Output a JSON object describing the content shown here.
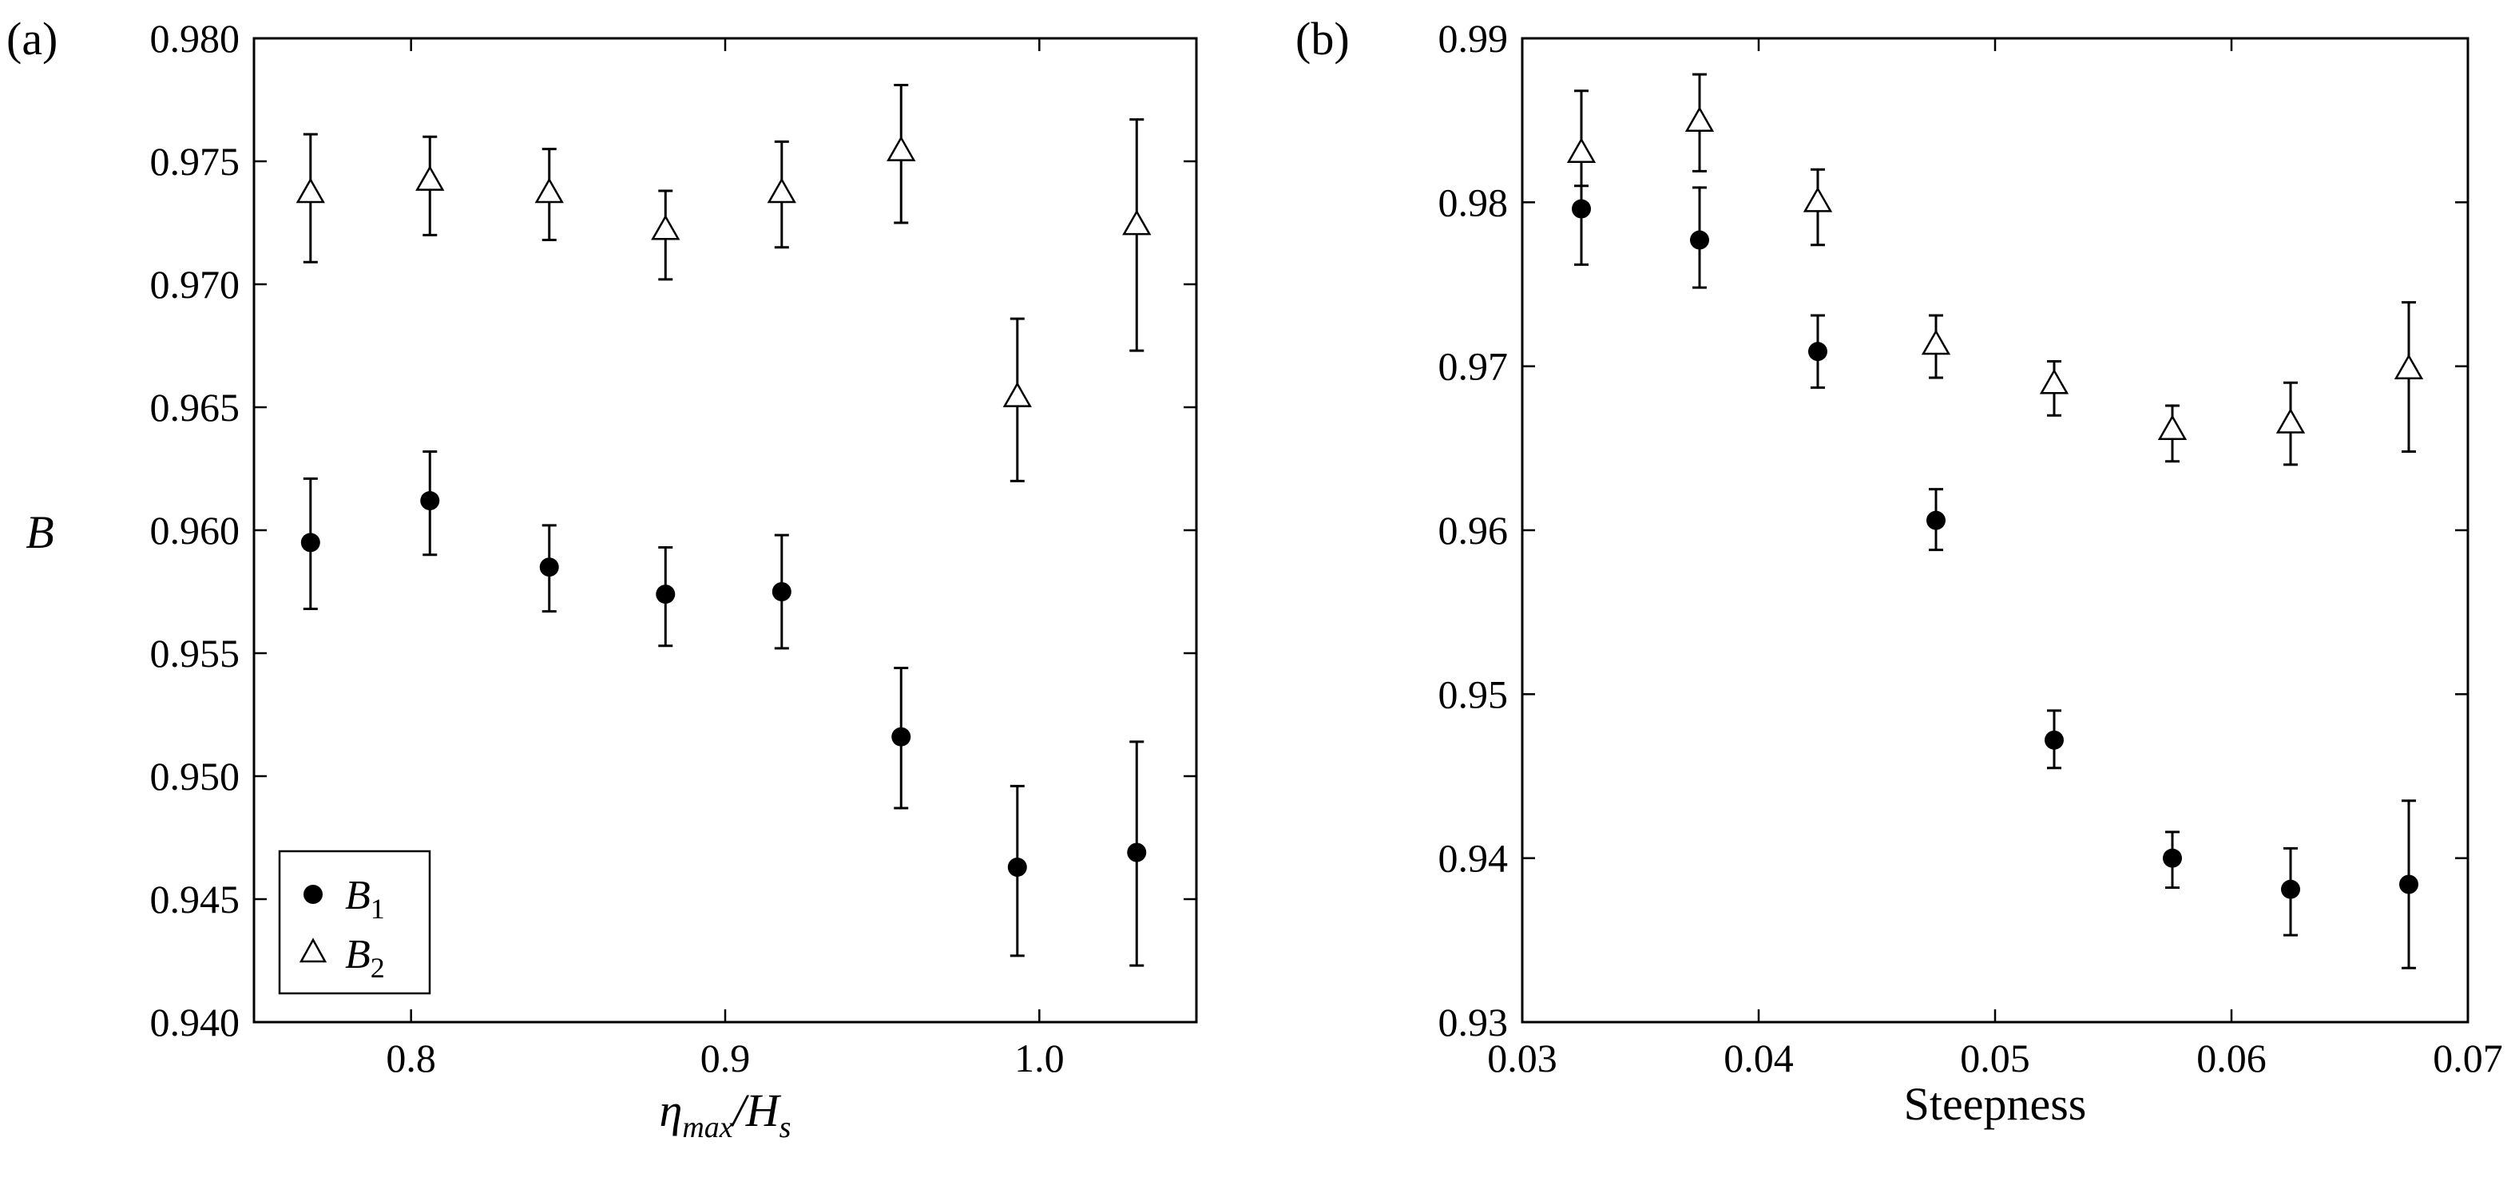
{
  "chart_data": [
    {
      "panel_label": "(a)",
      "type": "scatter",
      "ylabel": "B",
      "xlim": [
        0.75,
        1.05
      ],
      "ylim": [
        0.94,
        0.98
      ],
      "xticks": [
        "0.8",
        "0.9",
        "1.0"
      ],
      "xtick_values": [
        0.8,
        0.9,
        1.0
      ],
      "yticks": [
        "0.940",
        "0.945",
        "0.950",
        "0.955",
        "0.960",
        "0.965",
        "0.970",
        "0.975",
        "0.980"
      ],
      "ytick_values": [
        0.94,
        0.945,
        0.95,
        0.955,
        0.96,
        0.965,
        0.97,
        0.975,
        0.98
      ],
      "legend_placement": "bottom-left",
      "series": [
        {
          "marker": "filled-circle",
          "x": [
            0.768,
            0.806,
            0.844,
            0.881,
            0.918,
            0.956,
            0.993,
            1.031
          ],
          "y": [
            0.9595,
            0.9612,
            0.9585,
            0.9574,
            0.9575,
            0.9516,
            0.9463,
            0.9469
          ],
          "y_low": [
            0.9568,
            0.959,
            0.9567,
            0.9553,
            0.9552,
            0.9487,
            0.9427,
            0.9423
          ],
          "y_high": [
            0.9621,
            0.9632,
            0.9602,
            0.9593,
            0.9598,
            0.9544,
            0.9496,
            0.9514
          ]
        },
        {
          "marker": "open-triangle",
          "x": [
            0.768,
            0.806,
            0.844,
            0.881,
            0.918,
            0.956,
            0.993,
            1.031
          ],
          "y": [
            0.9737,
            0.9742,
            0.9737,
            0.9722,
            0.9737,
            0.9754,
            0.9654,
            0.9724
          ],
          "y_low": [
            0.9709,
            0.972,
            0.9718,
            0.9702,
            0.9715,
            0.9725,
            0.962,
            0.9673
          ],
          "y_high": [
            0.9761,
            0.976,
            0.9755,
            0.9738,
            0.9758,
            0.9781,
            0.9686,
            0.9767
          ]
        }
      ]
    },
    {
      "panel_label": "(b)",
      "type": "scatter",
      "xlabel": "Steepness",
      "xlim": [
        0.03,
        0.07
      ],
      "ylim": [
        0.93,
        0.99
      ],
      "xticks": [
        "0.03",
        "0.04",
        "0.05",
        "0.06",
        "0.07"
      ],
      "xtick_values": [
        0.03,
        0.04,
        0.05,
        0.06,
        0.07
      ],
      "yticks": [
        "0.93",
        "0.94",
        "0.95",
        "0.96",
        "0.97",
        "0.98",
        "0.99"
      ],
      "ytick_values": [
        0.93,
        0.94,
        0.95,
        0.96,
        0.97,
        0.98,
        0.99
      ],
      "series": [
        {
          "marker": "filled-circle",
          "x": [
            0.0325,
            0.0375,
            0.0425,
            0.0475,
            0.0525,
            0.0575,
            0.0625,
            0.0675
          ],
          "y": [
            0.9796,
            0.9777,
            0.9709,
            0.9606,
            0.9472,
            0.94,
            0.9381,
            0.9384
          ],
          "y_low": [
            0.9762,
            0.9748,
            0.9687,
            0.9588,
            0.9455,
            0.9382,
            0.9353,
            0.9333
          ],
          "y_high": [
            0.981,
            0.9809,
            0.9731,
            0.9625,
            0.949,
            0.9416,
            0.9406,
            0.9435
          ]
        },
        {
          "marker": "open-triangle",
          "x": [
            0.0325,
            0.0375,
            0.0425,
            0.0475,
            0.0525,
            0.0575,
            0.0625,
            0.0675
          ],
          "y": [
            0.983,
            0.9849,
            0.98,
            0.9713,
            0.9689,
            0.9661,
            0.9665,
            0.9698
          ],
          "y_low": [
            0.9795,
            0.9819,
            0.9774,
            0.9693,
            0.967,
            0.9642,
            0.964,
            0.9648
          ],
          "y_high": [
            0.9868,
            0.9878,
            0.982,
            0.9731,
            0.9703,
            0.9676,
            0.969,
            0.9739
          ]
        }
      ]
    }
  ]
}
